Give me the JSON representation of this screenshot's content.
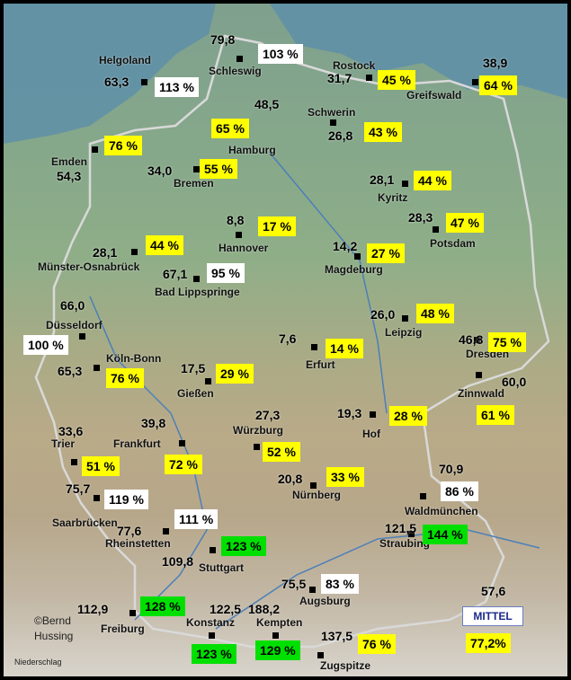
{
  "summary": {
    "label": "MITTEL",
    "value": "77,2%"
  },
  "credit": {
    "author": "©Bernd",
    "author_surname": "Hussing",
    "parameter": "Niederschlag"
  },
  "colors": {
    "above_normal": "#00e000",
    "normal": "#ffffff",
    "below_normal": "#ffff00"
  },
  "stations": [
    {
      "name": "Schleswig",
      "value": "79,8",
      "percent": "103 %",
      "color": "white"
    },
    {
      "name": "Helgoland",
      "value": "63,3",
      "percent": "113 %",
      "color": "white"
    },
    {
      "name": "Rostock",
      "value": "31,7",
      "percent": "45 %",
      "color": "yellow"
    },
    {
      "name": "Greifswald",
      "value": "38,9",
      "percent": "64 %",
      "color": "yellow"
    },
    {
      "name": "Hamburg",
      "value": "48,5",
      "percent": "65 %",
      "color": "yellow"
    },
    {
      "name": "Schwerin",
      "value": "26,8",
      "percent": "43 %",
      "color": "yellow"
    },
    {
      "name": "Emden",
      "value": "54,3",
      "percent": "76 %",
      "color": "yellow"
    },
    {
      "name": "Bremen",
      "value": "34,0",
      "percent": "55 %",
      "color": "yellow"
    },
    {
      "name": "Kyritz",
      "value": "28,1",
      "percent": "44 %",
      "color": "yellow"
    },
    {
      "name": "Hannover",
      "value": "8,8",
      "percent": "17 %",
      "color": "yellow"
    },
    {
      "name": "Potsdam",
      "value": "28,3",
      "percent": "47 %",
      "color": "yellow"
    },
    {
      "name": "Münster-Osnabrück",
      "value": "28,1",
      "percent": "44 %",
      "color": "yellow"
    },
    {
      "name": "Magdeburg",
      "value": "14,2",
      "percent": "27 %",
      "color": "yellow"
    },
    {
      "name": "Bad Lippspringe",
      "value": "67,1",
      "percent": "95 %",
      "color": "white"
    },
    {
      "name": "Düsseldorf",
      "value": "66,0",
      "percent": "100 %",
      "color": "white"
    },
    {
      "name": "Leipzig",
      "value": "26,0",
      "percent": "48 %",
      "color": "yellow"
    },
    {
      "name": "Dresden",
      "value": "46,8",
      "percent": "75 %",
      "color": "yellow"
    },
    {
      "name": "Erfurt",
      "value": "7,6",
      "percent": "14 %",
      "color": "yellow"
    },
    {
      "name": "Köln-Bonn",
      "value": "65,3",
      "percent": "76 %",
      "color": "yellow"
    },
    {
      "name": "Gießen",
      "value": "17,5",
      "percent": "29 %",
      "color": "yellow"
    },
    {
      "name": "Zinnwald",
      "value": "60,0",
      "percent": "61 %",
      "color": "yellow"
    },
    {
      "name": "Hof",
      "value": "19,3",
      "percent": "28 %",
      "color": "yellow"
    },
    {
      "name": "Würzburg",
      "value": "27,3",
      "percent": "52 %",
      "color": "yellow"
    },
    {
      "name": "Trier",
      "value": "33,6",
      "percent": "51 %",
      "color": "yellow"
    },
    {
      "name": "Frankfurt",
      "value": "39,8",
      "percent": "72 %",
      "color": "yellow"
    },
    {
      "name": "Nürnberg",
      "value": "20,8",
      "percent": "33 %",
      "color": "yellow"
    },
    {
      "name": "Saarbrücken",
      "value": "75,7",
      "percent": "119 %",
      "color": "white"
    },
    {
      "name": "Waldmünchen",
      "value": "70,9",
      "percent": "86 %",
      "color": "white"
    },
    {
      "name": "Rheinstetten",
      "value": "77,6",
      "percent": "111 %",
      "color": "white"
    },
    {
      "name": "Straubing",
      "value": "121,5",
      "percent": "144 %",
      "color": "green"
    },
    {
      "name": "Stuttgart",
      "value": "109,8",
      "percent": "123 %",
      "color": "green"
    },
    {
      "name": "Augsburg",
      "value": "75,5",
      "percent": "83 %",
      "color": "white"
    },
    {
      "name": "Freiburg",
      "value": "112,9",
      "percent": "128 %",
      "color": "green"
    },
    {
      "name": "Konstanz",
      "value": "122,5",
      "percent": "123 %",
      "color": "green"
    },
    {
      "name": "Kempten",
      "value": "188,2",
      "percent": "129 %",
      "color": "green"
    },
    {
      "name": "Zugspitze",
      "value": "137,5",
      "percent": "76 %",
      "color": "yellow"
    },
    {
      "name": "",
      "value": "57,6",
      "percent": "",
      "color": ""
    }
  ]
}
